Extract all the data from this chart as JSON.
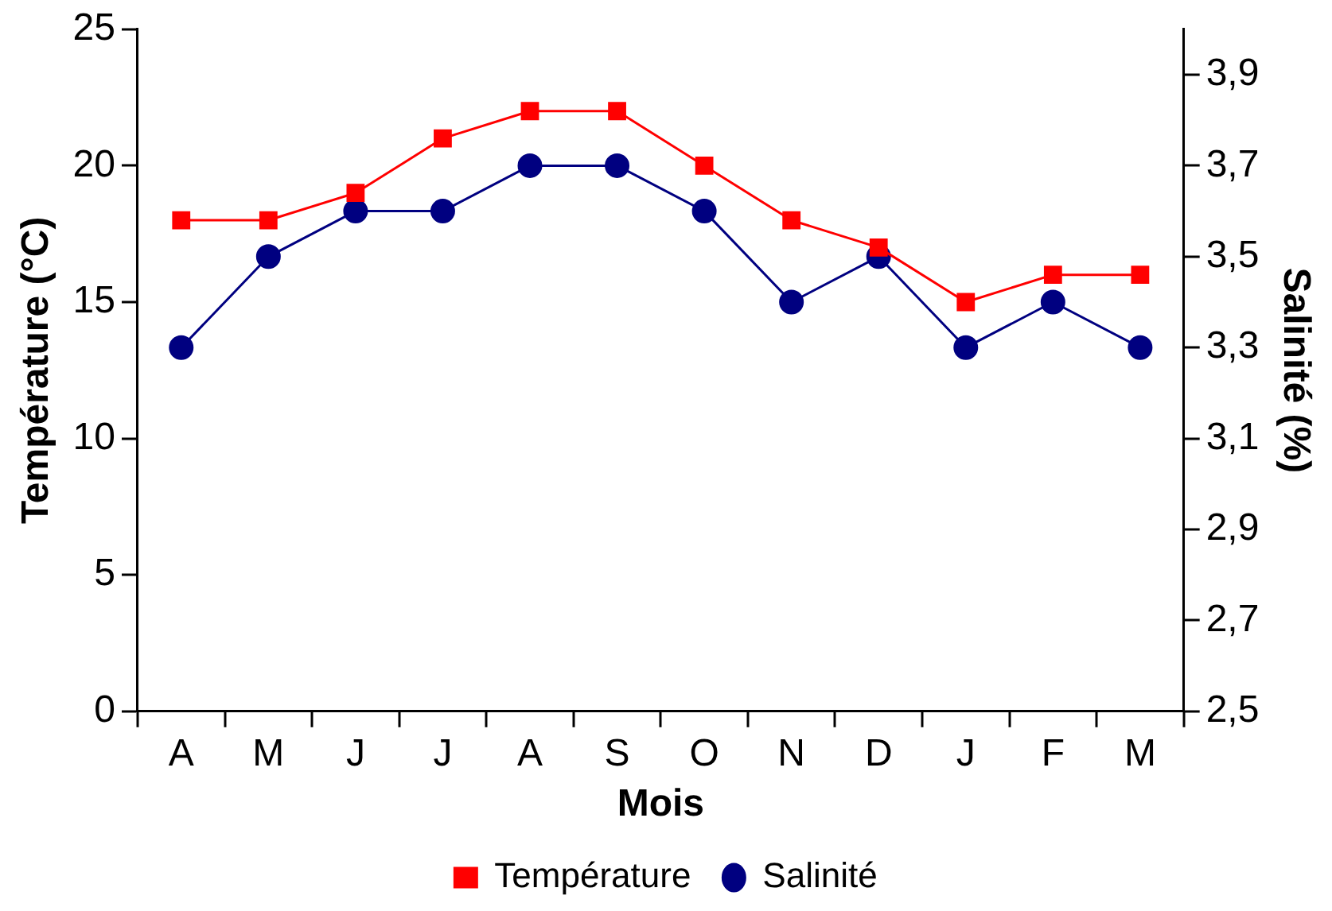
{
  "chart_data": {
    "type": "line",
    "xlabel": "Mois",
    "ylabel": "Température (°C)",
    "y2label": "Salinité (%)",
    "categories": [
      "A",
      "M",
      "J",
      "J",
      "A",
      "S",
      "O",
      "N",
      "D",
      "J",
      "F",
      "M"
    ],
    "series": [
      {
        "name": "Température",
        "color": "#ff0000",
        "marker": "square",
        "values": [
          18,
          18,
          19,
          21,
          22,
          22,
          20,
          18,
          17,
          15,
          16,
          16
        ]
      },
      {
        "name": "Salinité",
        "color": "#000080",
        "marker": "circle",
        "axis": "y2",
        "values": [
          3.3,
          3.5,
          3.6,
          3.6,
          3.7,
          3.7,
          3.6,
          3.4,
          3.5,
          3.3,
          3.4,
          3.3
        ]
      }
    ],
    "ylim": [
      0,
      25
    ],
    "yticks": [
      0,
      5,
      10,
      15,
      20,
      25
    ],
    "y2lim": [
      2.5,
      4.0
    ],
    "y2ticks": [
      {
        "value": 2.5,
        "label": "2,5"
      },
      {
        "value": 2.7,
        "label": "2,7"
      },
      {
        "value": 2.9,
        "label": "2,9"
      },
      {
        "value": 3.1,
        "label": "3,1"
      },
      {
        "value": 3.3,
        "label": "3,3"
      },
      {
        "value": 3.5,
        "label": "3,5"
      },
      {
        "value": 3.7,
        "label": "3,7"
      },
      {
        "value": 3.9,
        "label": "3,9"
      }
    ],
    "grid": false,
    "legend": "bottom",
    "line_style": "solid"
  }
}
